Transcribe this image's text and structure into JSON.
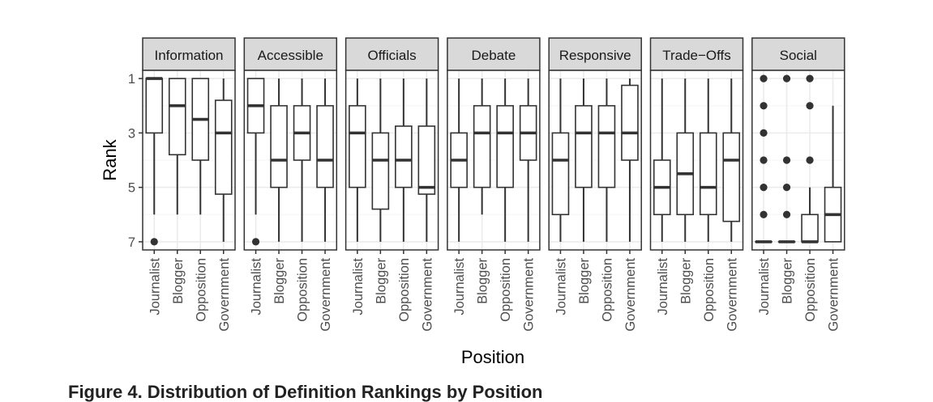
{
  "chart_data": {
    "type": "boxplot",
    "title": "",
    "xlabel": "Position",
    "ylabel": "Rank",
    "ylim": [
      7.3,
      0.7
    ],
    "y_reversed": true,
    "y_ticks": [
      "1",
      "3",
      "5",
      "7"
    ],
    "grid": true,
    "categories": [
      "Journalist",
      "Blogger",
      "Opposition",
      "Government"
    ],
    "panels": [
      {
        "name": "Information",
        "boxes": [
          {
            "category": "Journalist",
            "q1": 1,
            "median": 1,
            "q3": 3,
            "whisker_low": 1,
            "whisker_high": 6,
            "outliers": [
              7
            ]
          },
          {
            "category": "Blogger",
            "q1": 1,
            "median": 2,
            "q3": 3.8,
            "whisker_low": 1,
            "whisker_high": 6,
            "outliers": []
          },
          {
            "category": "Opposition",
            "q1": 1,
            "median": 2.5,
            "q3": 4,
            "whisker_low": 1,
            "whisker_high": 6,
            "outliers": []
          },
          {
            "category": "Government",
            "q1": 1.8,
            "median": 3,
            "q3": 5.25,
            "whisker_low": 1,
            "whisker_high": 7,
            "outliers": []
          }
        ]
      },
      {
        "name": "Accessible",
        "boxes": [
          {
            "category": "Journalist",
            "q1": 1,
            "median": 2,
            "q3": 3,
            "whisker_low": 1,
            "whisker_high": 6,
            "outliers": [
              7
            ]
          },
          {
            "category": "Blogger",
            "q1": 2,
            "median": 4,
            "q3": 5,
            "whisker_low": 1,
            "whisker_high": 7,
            "outliers": []
          },
          {
            "category": "Opposition",
            "q1": 2,
            "median": 3,
            "q3": 4,
            "whisker_low": 1,
            "whisker_high": 7,
            "outliers": []
          },
          {
            "category": "Government",
            "q1": 2,
            "median": 4,
            "q3": 5,
            "whisker_low": 1,
            "whisker_high": 7,
            "outliers": []
          }
        ]
      },
      {
        "name": "Officials",
        "boxes": [
          {
            "category": "Journalist",
            "q1": 2,
            "median": 3,
            "q3": 5,
            "whisker_low": 1,
            "whisker_high": 7,
            "outliers": []
          },
          {
            "category": "Blogger",
            "q1": 3,
            "median": 4,
            "q3": 5.8,
            "whisker_low": 1,
            "whisker_high": 7,
            "outliers": []
          },
          {
            "category": "Opposition",
            "q1": 2.75,
            "median": 4,
            "q3": 5,
            "whisker_low": 1,
            "whisker_high": 7,
            "outliers": []
          },
          {
            "category": "Government",
            "q1": 2.75,
            "median": 5,
            "q3": 5.25,
            "whisker_low": 1,
            "whisker_high": 7,
            "outliers": []
          }
        ]
      },
      {
        "name": "Debate",
        "boxes": [
          {
            "category": "Journalist",
            "q1": 3,
            "median": 4,
            "q3": 5,
            "whisker_low": 1,
            "whisker_high": 7,
            "outliers": []
          },
          {
            "category": "Blogger",
            "q1": 2,
            "median": 3,
            "q3": 5,
            "whisker_low": 1,
            "whisker_high": 6,
            "outliers": []
          },
          {
            "category": "Opposition",
            "q1": 2,
            "median": 3,
            "q3": 5,
            "whisker_low": 1,
            "whisker_high": 7,
            "outliers": []
          },
          {
            "category": "Government",
            "q1": 2,
            "median": 3,
            "q3": 4,
            "whisker_low": 1,
            "whisker_high": 7,
            "outliers": []
          }
        ]
      },
      {
        "name": "Responsive",
        "boxes": [
          {
            "category": "Journalist",
            "q1": 3,
            "median": 4,
            "q3": 6,
            "whisker_low": 1,
            "whisker_high": 7,
            "outliers": []
          },
          {
            "category": "Blogger",
            "q1": 2,
            "median": 3,
            "q3": 5,
            "whisker_low": 1,
            "whisker_high": 7,
            "outliers": []
          },
          {
            "category": "Opposition",
            "q1": 2,
            "median": 3,
            "q3": 5,
            "whisker_low": 1,
            "whisker_high": 7,
            "outliers": []
          },
          {
            "category": "Government",
            "q1": 1.25,
            "median": 3,
            "q3": 4,
            "whisker_low": 1,
            "whisker_high": 7,
            "outliers": []
          }
        ]
      },
      {
        "name": "Trade−Offs",
        "boxes": [
          {
            "category": "Journalist",
            "q1": 4,
            "median": 5,
            "q3": 6,
            "whisker_low": 1,
            "whisker_high": 7,
            "outliers": []
          },
          {
            "category": "Blogger",
            "q1": 3,
            "median": 4.5,
            "q3": 6,
            "whisker_low": 1,
            "whisker_high": 7,
            "outliers": []
          },
          {
            "category": "Opposition",
            "q1": 3,
            "median": 5,
            "q3": 6,
            "whisker_low": 1,
            "whisker_high": 7,
            "outliers": []
          },
          {
            "category": "Government",
            "q1": 3,
            "median": 4,
            "q3": 6.25,
            "whisker_low": 1,
            "whisker_high": 7,
            "outliers": []
          }
        ]
      },
      {
        "name": "Social",
        "boxes": [
          {
            "category": "Journalist",
            "q1": 7,
            "median": 7,
            "q3": 7,
            "whisker_low": 7,
            "whisker_high": 7,
            "outliers": [
              1,
              2,
              3,
              4,
              5,
              6
            ]
          },
          {
            "category": "Blogger",
            "q1": 7,
            "median": 7,
            "q3": 7,
            "whisker_low": 7,
            "whisker_high": 7,
            "outliers": [
              1,
              4,
              5,
              6
            ]
          },
          {
            "category": "Opposition",
            "q1": 6,
            "median": 7,
            "q3": 7,
            "whisker_low": 5,
            "whisker_high": 7,
            "outliers": [
              1,
              2,
              4
            ]
          },
          {
            "category": "Government",
            "q1": 5,
            "median": 6,
            "q3": 7,
            "whisker_low": 2,
            "whisker_high": 7,
            "outliers": []
          }
        ]
      }
    ]
  },
  "caption": "Figure 4. Distribution of Definition Rankings by Position",
  "colors": {
    "strip_fill": "#d9d9d9",
    "strip_border": "#333333",
    "grid_major": "#ebebeb",
    "grid_minor": "#f5f5f5",
    "box_stroke": "#333333",
    "panel_border": "#333333",
    "outlier": "#333333"
  }
}
